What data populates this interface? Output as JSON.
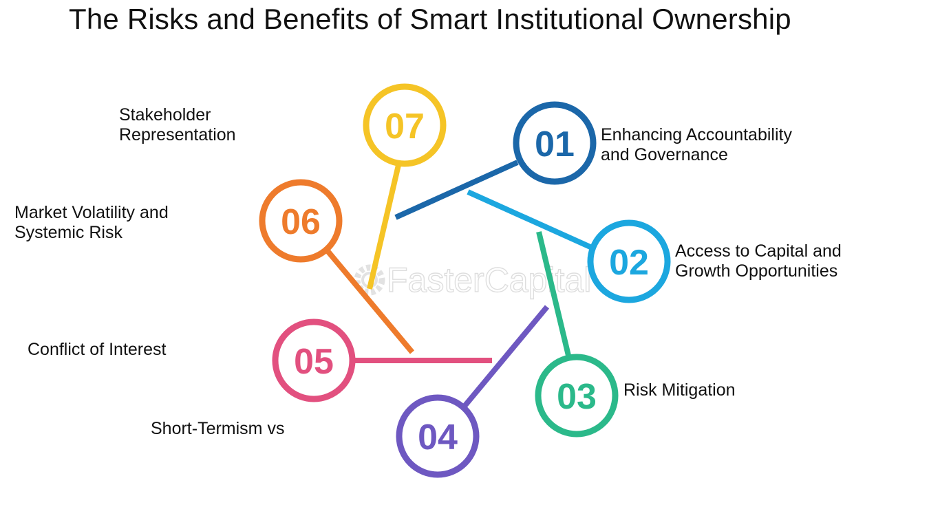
{
  "title": "The Risks and Benefits of Smart Institutional Ownership",
  "watermark": "FasterCapital",
  "items": [
    {
      "number": "01",
      "label_lines": [
        "Enhancing Accountability",
        "and Governance"
      ],
      "color": "#1b67a9"
    },
    {
      "number": "02",
      "label_lines": [
        "Access to Capital and",
        "Growth Opportunities"
      ],
      "color": "#1ca7df"
    },
    {
      "number": "03",
      "label_lines": [
        "Risk Mitigation"
      ],
      "color": "#2bb98a"
    },
    {
      "number": "04",
      "label_lines": [
        "Short-Termism vs"
      ],
      "color": "#6e58c1"
    },
    {
      "number": "05",
      "label_lines": [
        "Conflict of Interest"
      ],
      "color": "#e2507f"
    },
    {
      "number": "06",
      "label_lines": [
        "Market Volatility and",
        "Systemic Risk"
      ],
      "color": "#ee7b2c"
    },
    {
      "number": "07",
      "label_lines": [
        "Stakeholder",
        "Representation"
      ],
      "color": "#f5c426"
    }
  ]
}
